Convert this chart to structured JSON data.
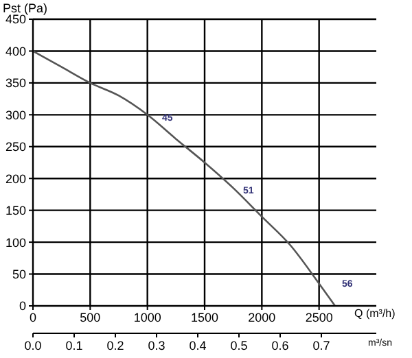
{
  "chart_data": {
    "type": "line",
    "xlabel": "Q (m³/h)",
    "ylabel": "Pst (Pa)",
    "x2label": "m³/sn",
    "series": [
      {
        "color": "#555555",
        "x": [
          0,
          250,
          500,
          750,
          1000,
          1250,
          1500,
          1750,
          2000,
          2250,
          2500,
          2640
        ],
        "values": [
          400,
          375,
          350,
          330,
          300,
          262,
          225,
          185,
          140,
          95,
          35,
          0
        ]
      }
    ],
    "xlim": [
      0,
      3000
    ],
    "xticks": [
      0,
      500,
      1000,
      1500,
      2000,
      2500
    ],
    "ylim": [
      0,
      450
    ],
    "yticks": [
      0,
      50,
      100,
      150,
      200,
      250,
      300,
      350,
      400,
      450
    ],
    "x2lim": [
      0,
      0.8333
    ],
    "x2ticks": [
      {
        "value": 0,
        "label": "0.0"
      },
      0.1,
      0.2,
      0.3,
      0.4,
      0.5,
      0.6,
      0.7
    ],
    "annotations": [
      "45",
      "51",
      "56"
    ],
    "grid": true,
    "marker": "none",
    "line_style": "solid"
  }
}
